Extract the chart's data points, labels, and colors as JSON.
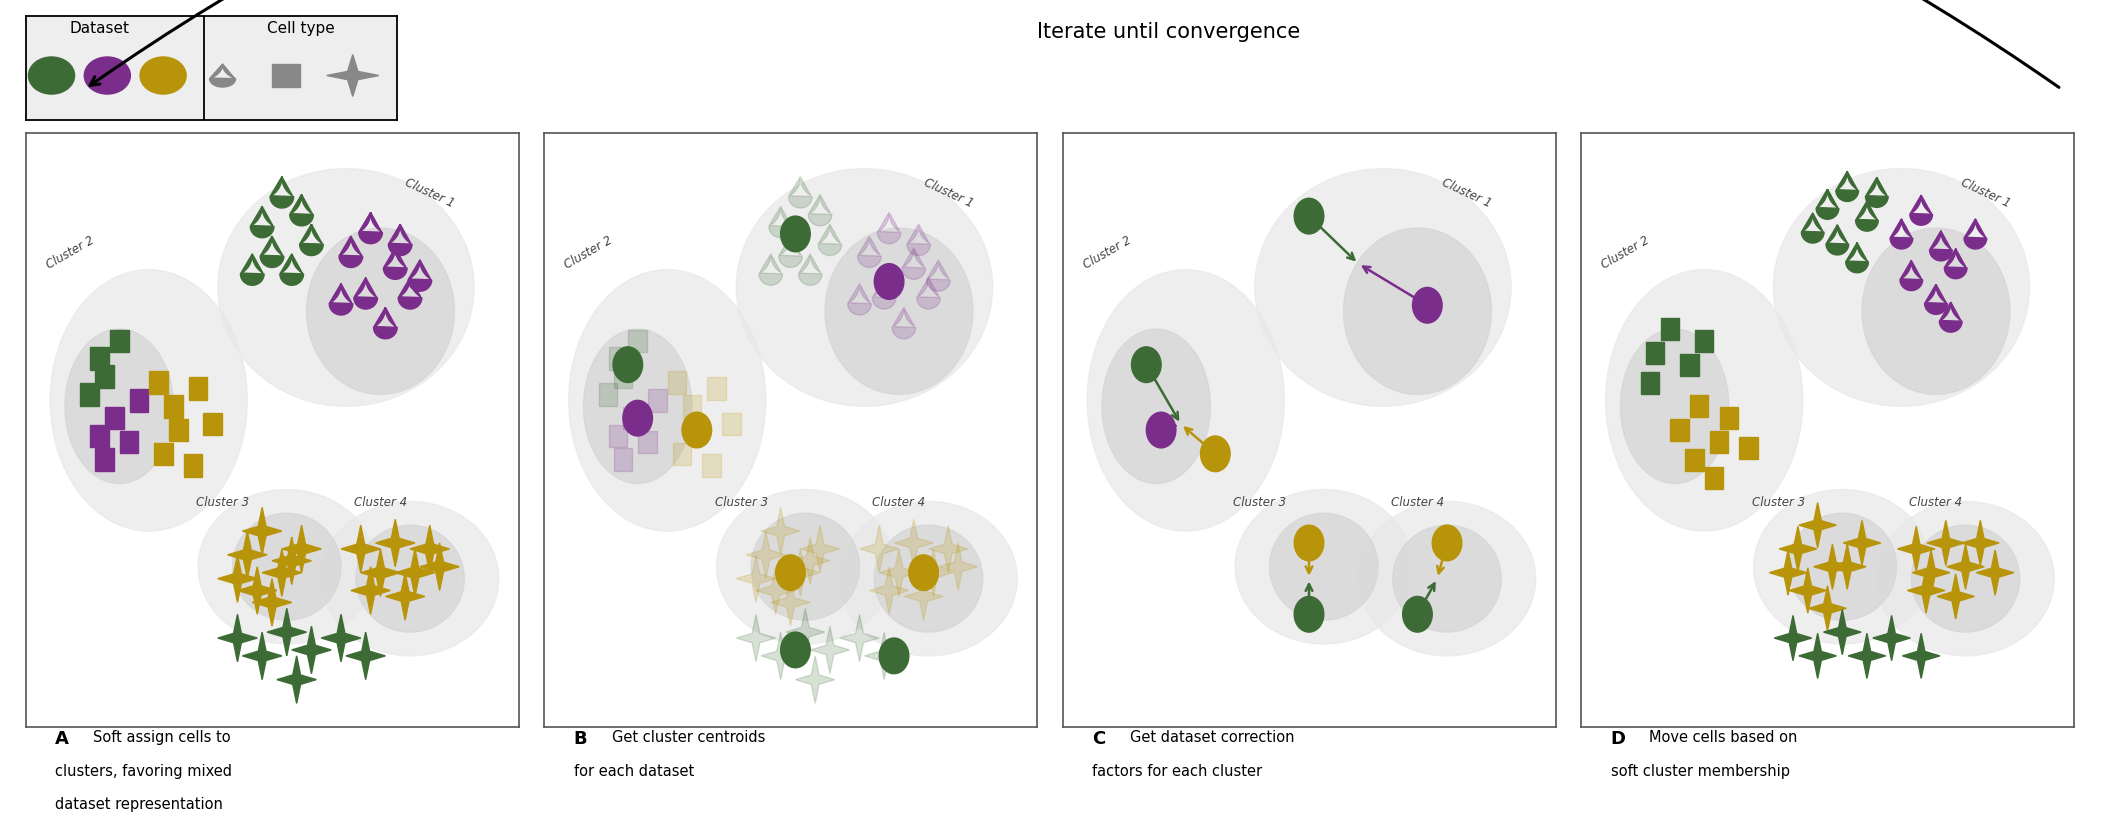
{
  "colors": {
    "green": "#3d6b35",
    "purple": "#7b2d8b",
    "gold": "#b8940a",
    "cluster_outer": "#e8e8e8",
    "cluster_inner": "#d5d5d5",
    "white": "#ffffff",
    "text_dark": "#333333",
    "legend_bg": "#eeeeee",
    "legend_gray_marker": "#888888",
    "line_green": "#3d6b35",
    "line_purple": "#7b2d8b",
    "line_gold": "#b8940a"
  },
  "panel_labels": [
    "A",
    "B",
    "C",
    "D"
  ],
  "panel_descs": [
    "Soft assign cells to\nclusters, favoring mixed\ndataset representation",
    "Get cluster centroids\nfor each dataset",
    "Get dataset correction\nfactors for each cluster",
    "Move cells based on\nsoft cluster membership"
  ],
  "arrow_label": "Iterate until convergence",
  "legend_dataset": "Dataset",
  "legend_celltype": "Cell type"
}
